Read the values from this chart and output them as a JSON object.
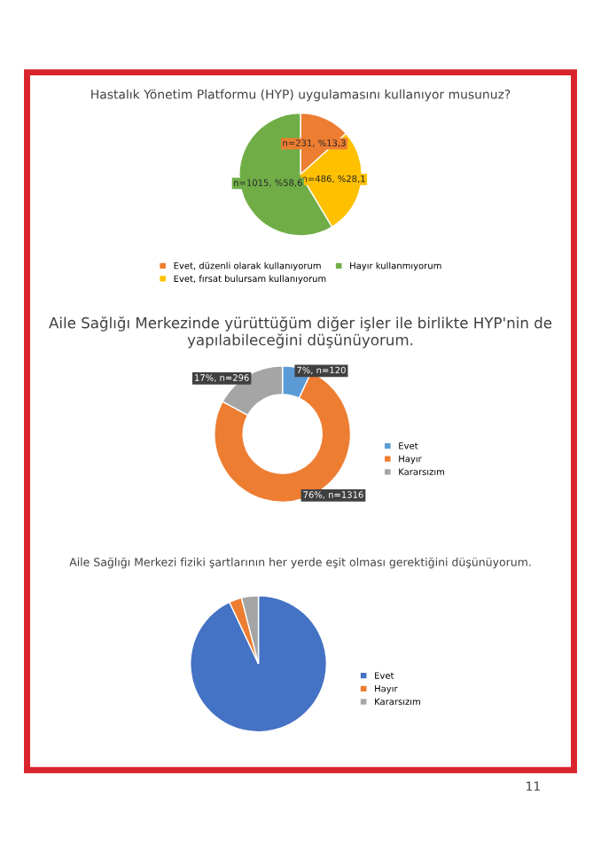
{
  "chart_data": [
    {
      "type": "pie",
      "title": "Hastalık Yönetim Platformu (HYP) uygulamasını kullanıyor musunuz?",
      "categories": [
        "Evet, düzenli olarak kullanıyorum",
        "Evet, fırsat bulursam kullanıyorum",
        "Hayır kullanmıyorum"
      ],
      "values": [
        231,
        486,
        1015
      ],
      "colors": [
        "#ed7d31",
        "#ffc000",
        "#70ad47"
      ],
      "value_labels": [
        "n=231, %13,3",
        "n=486, %28,1",
        "n=1015, %58,6"
      ],
      "legend": "bottom"
    },
    {
      "type": "donut",
      "title": "Aile Sağlığı Merkezinde yürüttüğüm diğer işler ile birlikte HYP'nin de yapılabileceğini düşünüyorum.",
      "categories": [
        "Evet",
        "Hayır",
        "Kararsızım"
      ],
      "values": [
        120,
        1316,
        296
      ],
      "colors": [
        "#5b9bd5",
        "#ed7d31",
        "#a5a5a5"
      ],
      "value_labels": [
        "7%, n=120",
        "76%, n=1316",
        "17%, n=296"
      ],
      "legend": "right"
    },
    {
      "type": "pie",
      "title": "Aile Sağlığı Merkezi fiziki şartlarının her yerde eşit olması gerektiğini düşünüyorum.",
      "categories": [
        "Evet",
        "Hayır",
        "Kararsızım"
      ],
      "values": [
        93,
        3,
        4
      ],
      "colors": [
        "#4472c4",
        "#ed7d31",
        "#a5a5a5"
      ],
      "legend": "right",
      "annotations": [
        "11"
      ]
    }
  ]
}
